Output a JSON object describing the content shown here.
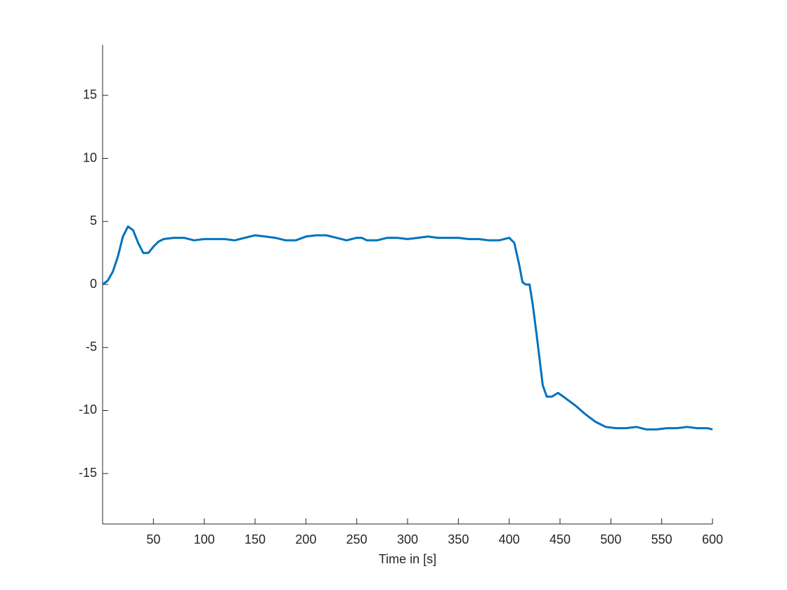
{
  "chart_data": {
    "type": "line",
    "xlabel": "Time in [s]",
    "x": [
      0,
      5,
      10,
      15,
      20,
      25,
      30,
      35,
      40,
      45,
      50,
      55,
      60,
      70,
      80,
      90,
      100,
      110,
      120,
      130,
      140,
      150,
      160,
      170,
      180,
      190,
      200,
      210,
      220,
      230,
      240,
      250,
      255,
      260,
      270,
      280,
      290,
      300,
      310,
      320,
      330,
      340,
      350,
      360,
      370,
      380,
      390,
      400,
      405,
      410,
      413,
      416,
      420,
      423,
      427,
      430,
      433,
      437,
      442,
      448,
      455,
      465,
      475,
      485,
      495,
      505,
      515,
      525,
      535,
      545,
      555,
      565,
      575,
      585,
      595,
      600
    ],
    "series": [
      {
        "color": "#0072BD",
        "values": [
          0,
          0.3,
          1,
          2.2,
          3.8,
          4.6,
          4.3,
          3.3,
          2.5,
          2.5,
          3,
          3.4,
          3.6,
          3.7,
          3.7,
          3.5,
          3.6,
          3.6,
          3.6,
          3.5,
          3.7,
          3.9,
          3.8,
          3.7,
          3.5,
          3.5,
          3.8,
          3.9,
          3.9,
          3.7,
          3.5,
          3.7,
          3.7,
          3.5,
          3.5,
          3.7,
          3.7,
          3.6,
          3.7,
          3.8,
          3.7,
          3.7,
          3.7,
          3.6,
          3.6,
          3.5,
          3.5,
          3.7,
          3.3,
          1.5,
          0.2,
          0,
          0,
          -1.5,
          -4,
          -6,
          -8,
          -8.9,
          -8.9,
          -8.6,
          -9,
          -9.6,
          -10.3,
          -10.9,
          -11.3,
          -11.4,
          -11.4,
          -11.3,
          -11.5,
          -11.5,
          -11.4,
          -11.4,
          -11.3,
          -11.4,
          -11.4,
          -11.5
        ]
      }
    ],
    "xlim": [
      0,
      600
    ],
    "ylim": [
      -19,
      19
    ],
    "xticks": [
      50,
      100,
      150,
      200,
      250,
      300,
      350,
      400,
      450,
      500,
      550,
      600
    ],
    "yticks": [
      -15,
      -10,
      -5,
      0,
      5,
      10,
      15
    ],
    "grid": false
  }
}
